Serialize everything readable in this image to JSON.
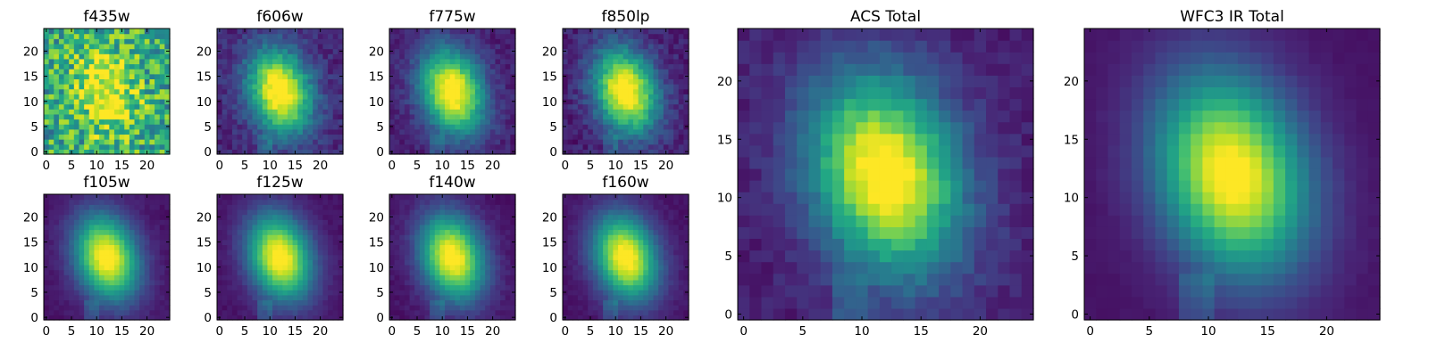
{
  "chart_data": [
    {
      "type": "heatmap",
      "title": "f435w",
      "grid_size": 25,
      "colormap": "viridis",
      "xlim": [
        0,
        24
      ],
      "ylim": [
        0,
        24
      ],
      "xticks": [
        0,
        5,
        10,
        15,
        20
      ],
      "yticks": [
        0,
        5,
        10,
        15,
        20
      ],
      "center": [
        12,
        12
      ],
      "noise": 0.55,
      "peak": 0.45,
      "background": 0.6
    },
    {
      "type": "heatmap",
      "title": "f606w",
      "grid_size": 25,
      "colormap": "viridis",
      "xlim": [
        0,
        24
      ],
      "ylim": [
        0,
        24
      ],
      "xticks": [
        0,
        5,
        10,
        15,
        20
      ],
      "yticks": [
        0,
        5,
        10,
        15,
        20
      ],
      "center": [
        12,
        12
      ],
      "noise": 0.15,
      "peak": 1.0,
      "background": 0.1
    },
    {
      "type": "heatmap",
      "title": "f775w",
      "grid_size": 25,
      "colormap": "viridis",
      "xlim": [
        0,
        24
      ],
      "ylim": [
        0,
        24
      ],
      "xticks": [
        0,
        5,
        10,
        15,
        20
      ],
      "yticks": [
        0,
        5,
        10,
        15,
        20
      ],
      "center": [
        12,
        12
      ],
      "noise": 0.12,
      "peak": 1.0,
      "background": 0.08
    },
    {
      "type": "heatmap",
      "title": "f850lp",
      "grid_size": 25,
      "colormap": "viridis",
      "xlim": [
        0,
        24
      ],
      "ylim": [
        0,
        24
      ],
      "xticks": [
        0,
        5,
        10,
        15,
        20
      ],
      "yticks": [
        0,
        5,
        10,
        15,
        20
      ],
      "center": [
        12,
        12
      ],
      "noise": 0.15,
      "peak": 1.0,
      "background": 0.08
    },
    {
      "type": "heatmap",
      "title": "f105w",
      "grid_size": 25,
      "colormap": "viridis",
      "xlim": [
        0,
        24
      ],
      "ylim": [
        0,
        24
      ],
      "xticks": [
        0,
        5,
        10,
        15,
        20
      ],
      "yticks": [
        0,
        5,
        10,
        15,
        20
      ],
      "center": [
        12,
        12
      ],
      "noise": 0.05,
      "peak": 1.0,
      "background": 0.05
    },
    {
      "type": "heatmap",
      "title": "f125w",
      "grid_size": 25,
      "colormap": "viridis",
      "xlim": [
        0,
        24
      ],
      "ylim": [
        0,
        24
      ],
      "xticks": [
        0,
        5,
        10,
        15,
        20
      ],
      "yticks": [
        0,
        5,
        10,
        15,
        20
      ],
      "center": [
        12,
        12
      ],
      "noise": 0.05,
      "peak": 1.0,
      "background": 0.05
    },
    {
      "type": "heatmap",
      "title": "f140w",
      "grid_size": 25,
      "colormap": "viridis",
      "xlim": [
        0,
        24
      ],
      "ylim": [
        0,
        24
      ],
      "xticks": [
        0,
        5,
        10,
        15,
        20
      ],
      "yticks": [
        0,
        5,
        10,
        15,
        20
      ],
      "center": [
        12,
        12
      ],
      "noise": 0.06,
      "peak": 1.0,
      "background": 0.05
    },
    {
      "type": "heatmap",
      "title": "f160w",
      "grid_size": 25,
      "colormap": "viridis",
      "xlim": [
        0,
        24
      ],
      "ylim": [
        0,
        24
      ],
      "xticks": [
        0,
        5,
        10,
        15,
        20
      ],
      "yticks": [
        0,
        5,
        10,
        15,
        20
      ],
      "center": [
        12,
        12
      ],
      "noise": 0.05,
      "peak": 1.0,
      "background": 0.05
    },
    {
      "type": "heatmap",
      "title": "ACS Total",
      "grid_size": 25,
      "colormap": "viridis",
      "xlim": [
        0,
        24
      ],
      "ylim": [
        0,
        24
      ],
      "xticks": [
        0,
        5,
        10,
        15,
        20
      ],
      "yticks": [
        0,
        5,
        10,
        15,
        20
      ],
      "center": [
        12,
        12
      ],
      "noise": 0.1,
      "peak": 1.0,
      "background": 0.08
    },
    {
      "type": "heatmap",
      "title": "WFC3 IR Total",
      "grid_size": 25,
      "colormap": "viridis",
      "xlim": [
        0,
        24
      ],
      "ylim": [
        0,
        24
      ],
      "xticks": [
        0,
        5,
        10,
        15,
        20
      ],
      "yticks": [
        0,
        5,
        10,
        15,
        20
      ],
      "center": [
        12,
        12
      ],
      "noise": 0.02,
      "peak": 1.0,
      "background": 0.05
    }
  ]
}
